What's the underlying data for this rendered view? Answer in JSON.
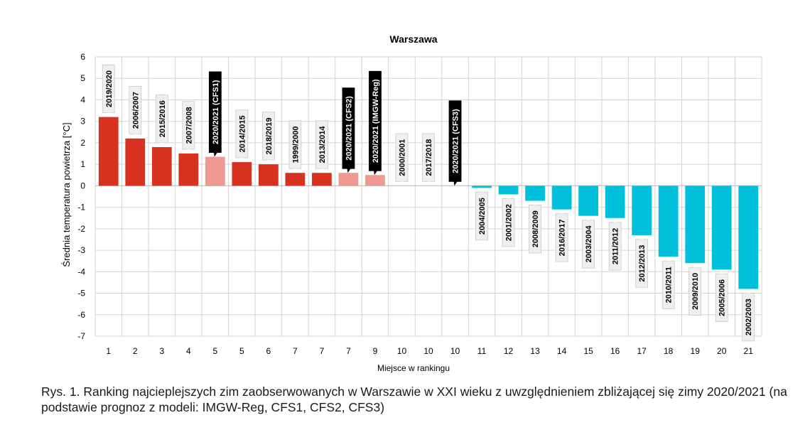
{
  "chart_data": {
    "type": "bar",
    "title": "Warszawa",
    "xlabel": "Miejsce w rankingu",
    "ylabel": "Średnia temperatura powietrza [°C]",
    "ylim": [
      -7,
      6
    ],
    "yticks": [
      6,
      5,
      4,
      3,
      2,
      1,
      0,
      -1,
      -2,
      -3,
      -4,
      -5,
      -6,
      -7
    ],
    "grid": true,
    "colors": {
      "warm": "#d7311f",
      "forecast": "#ee9a92",
      "cold": "#00c0dc",
      "label_box": "#efefef",
      "label_box_dark": "#000000"
    },
    "bars": [
      {
        "rank": "1",
        "label": "2019/2020",
        "value": 3.2,
        "kind": "warm"
      },
      {
        "rank": "2",
        "label": "2006/2007",
        "value": 2.2,
        "kind": "warm"
      },
      {
        "rank": "3",
        "label": "2015/2016",
        "value": 1.8,
        "kind": "warm"
      },
      {
        "rank": "4",
        "label": "2007/2008",
        "value": 1.5,
        "kind": "warm"
      },
      {
        "rank": "5",
        "label": "2020/2021 (CFS1)",
        "value": 1.35,
        "kind": "forecast"
      },
      {
        "rank": "5",
        "label": "2014/2015",
        "value": 1.1,
        "kind": "warm"
      },
      {
        "rank": "6",
        "label": "2018/2019",
        "value": 1.0,
        "kind": "warm"
      },
      {
        "rank": "7",
        "label": "1999/2000",
        "value": 0.6,
        "kind": "warm"
      },
      {
        "rank": "7",
        "label": "2013/2014",
        "value": 0.6,
        "kind": "warm"
      },
      {
        "rank": "7",
        "label": "2020/2021 (CFS2)",
        "value": 0.6,
        "kind": "forecast"
      },
      {
        "rank": "9",
        "label": "2020/2021 (IMGW-Reg)",
        "value": 0.5,
        "kind": "forecast"
      },
      {
        "rank": "10",
        "label": "2000/2001",
        "value": 0.0,
        "kind": "warm"
      },
      {
        "rank": "10",
        "label": "2017/2018",
        "value": 0.0,
        "kind": "warm"
      },
      {
        "rank": "10",
        "label": "2020/2021 (CFS3)",
        "value": 0.0,
        "kind": "forecast"
      },
      {
        "rank": "11",
        "label": "2004/2005",
        "value": -0.1,
        "kind": "cold"
      },
      {
        "rank": "12",
        "label": "2001/2002",
        "value": -0.4,
        "kind": "cold"
      },
      {
        "rank": "13",
        "label": "2008/2009",
        "value": -0.7,
        "kind": "cold"
      },
      {
        "rank": "14",
        "label": "2016/2017",
        "value": -1.1,
        "kind": "cold"
      },
      {
        "rank": "15",
        "label": "2003/2004",
        "value": -1.4,
        "kind": "cold"
      },
      {
        "rank": "16",
        "label": "2011/2012",
        "value": -1.5,
        "kind": "cold"
      },
      {
        "rank": "17",
        "label": "2012/2013",
        "value": -2.3,
        "kind": "cold"
      },
      {
        "rank": "18",
        "label": "2010/2011",
        "value": -3.3,
        "kind": "cold"
      },
      {
        "rank": "19",
        "label": "2009/2010",
        "value": -3.6,
        "kind": "cold"
      },
      {
        "rank": "20",
        "label": "2005/2006",
        "value": -3.9,
        "kind": "cold"
      },
      {
        "rank": "21",
        "label": "2002/2003",
        "value": -4.8,
        "kind": "cold"
      }
    ]
  },
  "caption": "Rys. 1. Ranking najcieplejszych zim zaobserwowanych w Warszawie w XXI wieku z uwzględnieniem zbliżającej się zimy 2020/2021 (na podstawie prognoz z modeli: IMGW-Reg, CFS1, CFS2, CFS3)"
}
